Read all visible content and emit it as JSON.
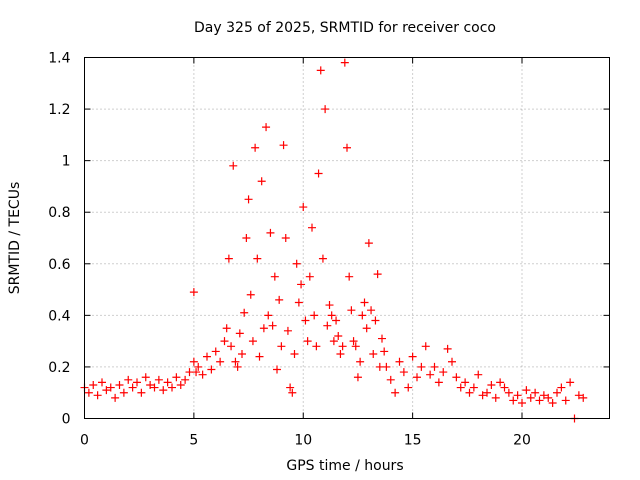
{
  "chart_data": {
    "type": "scatter",
    "title": "Day 325 of 2025, SRMTID for receiver coco",
    "xlabel": "GPS time / hours",
    "ylabel": "SRMTID / TECUs",
    "xlim": [
      0,
      24
    ],
    "ylim": [
      0,
      1.4
    ],
    "xticks": [
      0,
      5,
      10,
      15,
      20
    ],
    "xtick_labels": [
      "0",
      "5",
      "10",
      "15",
      "20"
    ],
    "yticks": [
      0,
      0.2,
      0.4,
      0.6,
      0.8,
      1.0,
      1.2,
      1.4
    ],
    "ytick_labels": [
      "0",
      "0.2",
      "0.4",
      "0.6",
      "0.8",
      "1",
      "1.2",
      "1.4"
    ],
    "grid": true,
    "marker": "plus",
    "color": "#ff0000",
    "series": [
      {
        "name": "SRMTID",
        "x": [
          0.0,
          0.2,
          0.4,
          0.6,
          0.8,
          1.0,
          1.2,
          1.4,
          1.6,
          1.8,
          2.0,
          2.2,
          2.4,
          2.6,
          2.8,
          3.0,
          3.2,
          3.4,
          3.6,
          3.8,
          4.0,
          4.2,
          4.4,
          4.6,
          4.8,
          5.0,
          5.0,
          5.1,
          5.2,
          5.4,
          5.6,
          5.8,
          6.0,
          6.2,
          6.4,
          6.5,
          6.6,
          6.7,
          6.8,
          6.9,
          7.0,
          7.1,
          7.2,
          7.3,
          7.4,
          7.5,
          7.6,
          7.7,
          7.8,
          7.9,
          8.0,
          8.1,
          8.2,
          8.3,
          8.4,
          8.5,
          8.6,
          8.7,
          8.8,
          8.9,
          9.0,
          9.1,
          9.2,
          9.3,
          9.4,
          9.5,
          9.6,
          9.7,
          9.8,
          9.9,
          10.0,
          10.1,
          10.2,
          10.3,
          10.4,
          10.5,
          10.6,
          10.7,
          10.8,
          10.9,
          11.0,
          11.1,
          11.2,
          11.3,
          11.4,
          11.5,
          11.6,
          11.7,
          11.8,
          11.9,
          12.0,
          12.1,
          12.2,
          12.3,
          12.4,
          12.5,
          12.6,
          12.7,
          12.8,
          12.9,
          13.0,
          13.1,
          13.2,
          13.3,
          13.4,
          13.5,
          13.6,
          13.7,
          13.8,
          14.0,
          14.2,
          14.4,
          14.6,
          14.8,
          15.0,
          15.2,
          15.4,
          15.6,
          15.8,
          16.0,
          16.2,
          16.4,
          16.6,
          16.8,
          17.0,
          17.2,
          17.4,
          17.6,
          17.8,
          18.0,
          18.2,
          18.4,
          18.6,
          18.8,
          19.0,
          19.2,
          19.4,
          19.6,
          19.8,
          20.0,
          20.2,
          20.4,
          20.6,
          20.8,
          21.0,
          21.2,
          21.4,
          21.6,
          21.8,
          22.0,
          22.2,
          22.4,
          22.6,
          22.8
        ],
        "y": [
          0.12,
          0.1,
          0.13,
          0.09,
          0.14,
          0.11,
          0.12,
          0.08,
          0.13,
          0.1,
          0.15,
          0.12,
          0.14,
          0.1,
          0.16,
          0.13,
          0.12,
          0.15,
          0.11,
          0.14,
          0.12,
          0.16,
          0.13,
          0.15,
          0.18,
          0.49,
          0.22,
          0.18,
          0.2,
          0.17,
          0.24,
          0.19,
          0.26,
          0.22,
          0.3,
          0.35,
          0.62,
          0.28,
          0.98,
          0.22,
          0.2,
          0.33,
          0.25,
          0.41,
          0.7,
          0.85,
          0.48,
          0.3,
          1.05,
          0.62,
          0.24,
          0.92,
          0.35,
          1.13,
          0.4,
          0.72,
          0.36,
          0.55,
          0.19,
          0.46,
          0.28,
          1.06,
          0.7,
          0.34,
          0.12,
          0.1,
          0.25,
          0.6,
          0.45,
          0.52,
          0.82,
          0.38,
          0.3,
          0.55,
          0.74,
          0.4,
          0.28,
          0.95,
          1.35,
          0.62,
          1.2,
          0.36,
          0.44,
          0.4,
          0.3,
          0.38,
          0.32,
          0.25,
          0.28,
          1.38,
          1.05,
          0.55,
          0.42,
          0.3,
          0.28,
          0.16,
          0.22,
          0.4,
          0.45,
          0.35,
          0.68,
          0.42,
          0.25,
          0.38,
          0.56,
          0.2,
          0.31,
          0.26,
          0.2,
          0.15,
          0.1,
          0.22,
          0.18,
          0.12,
          0.24,
          0.16,
          0.2,
          0.28,
          0.17,
          0.2,
          0.14,
          0.18,
          0.27,
          0.22,
          0.16,
          0.12,
          0.14,
          0.1,
          0.12,
          0.17,
          0.09,
          0.1,
          0.13,
          0.08,
          0.14,
          0.12,
          0.1,
          0.07,
          0.09,
          0.06,
          0.11,
          0.08,
          0.1,
          0.07,
          0.09,
          0.08,
          0.06,
          0.1,
          0.12,
          0.07,
          0.14,
          0.0,
          0.09,
          0.08
        ]
      }
    ]
  }
}
